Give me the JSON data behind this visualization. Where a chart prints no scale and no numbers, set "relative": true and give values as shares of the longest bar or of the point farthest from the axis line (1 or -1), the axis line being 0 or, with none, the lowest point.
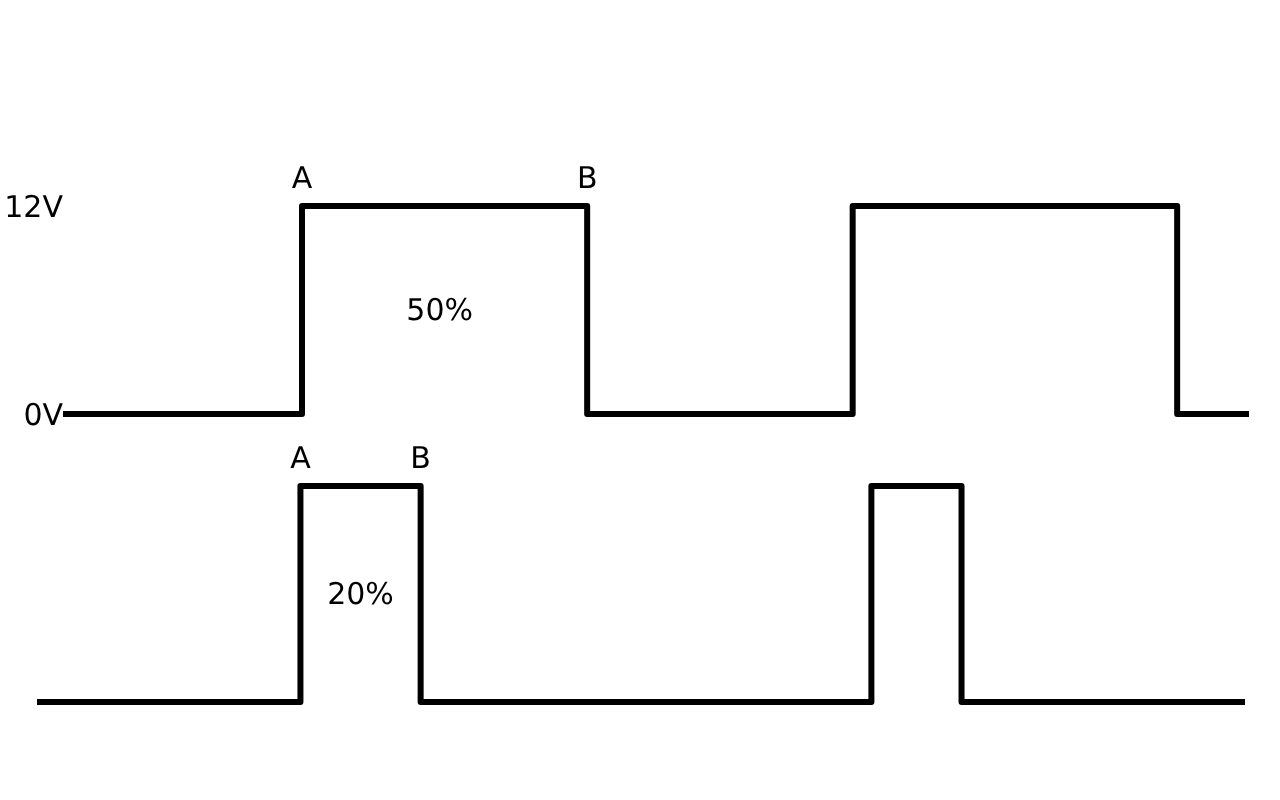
{
  "chart_data": [
    {
      "type": "step",
      "categories": [
        null,
        null,
        null,
        null,
        null,
        null,
        null,
        null,
        null,
        null,
        null,
        null,
        null,
        null,
        null,
        null,
        null,
        null,
        null,
        null,
        null,
        null,
        null,
        null,
        null,
        null,
        null,
        null,
        null,
        null,
        null,
        null,
        null,
        null,
        null,
        null,
        null,
        null,
        null,
        null,
        null,
        null,
        null,
        null,
        null,
        null,
        null,
        null,
        null,
        null,
        null,
        null,
        null,
        null,
        null,
        null,
        null,
        null,
        null,
        null,
        null,
        null,
        null,
        null,
        null,
        null,
        null,
        null,
        null,
        null,
        null,
        null,
        null,
        null,
        null,
        null,
        null,
        null,
        null,
        null,
        null,
        null,
        null,
        null,
        null,
        null,
        null,
        null,
        null,
        null,
        null,
        null,
        null,
        null,
        null,
        null,
        null,
        null,
        null,
        null,
        null,
        null,
        null,
        null,
        null,
        null,
        null,
        null,
        null,
        null,
        null,
        null,
        null,
        null,
        null,
        null,
        null,
        null,
        null,
        null,
        null
      ],
      "values": [
        0,
        0,
        0,
        0,
        0,
        0,
        0,
        0,
        0,
        0,
        0,
        0,
        0,
        0,
        0,
        0,
        0,
        0,
        0,
        0,
        0,
        0,
        0,
        0,
        12,
        12,
        12,
        12,
        12,
        12,
        12,
        12,
        12,
        12,
        12,
        12,
        12,
        12,
        12,
        12,
        12,
        12,
        12,
        12,
        12,
        12,
        12,
        12,
        12,
        12,
        12,
        12,
        12,
        0,
        0,
        0,
        0,
        0,
        0,
        0,
        0,
        0,
        0,
        0,
        0,
        0,
        0,
        0,
        0,
        0,
        0,
        0,
        0,
        0,
        0,
        0,
        0,
        0,
        0,
        0,
        12,
        12,
        12,
        12,
        12,
        12,
        12,
        12,
        12,
        12,
        12,
        12,
        12,
        12,
        12,
        12,
        12,
        12,
        12,
        12,
        12,
        12,
        12,
        12,
        12,
        12,
        12,
        12,
        12,
        12,
        12,
        12,
        12,
        0,
        0,
        0,
        0,
        0,
        0,
        0,
        0
      ],
      "color": "#000000",
      "ylim": [
        0,
        12
      ],
      "yticks": [
        {
          "value": 0,
          "label": "0V"
        },
        {
          "value": 12,
          "label": "12V"
        }
      ],
      "tick_labels": "y",
      "annotations": [
        {
          "text": "A",
          "y": 12
        },
        {
          "text": "B",
          "y": 12
        },
        "50%"
      ]
    },
    {
      "type": "step",
      "categories": [
        null,
        null,
        null,
        null,
        null,
        null,
        null,
        null,
        null,
        null,
        null,
        null,
        null,
        null,
        null,
        null,
        null,
        null,
        null,
        null,
        null,
        null,
        null,
        null,
        null,
        null,
        null,
        null,
        null,
        null,
        null,
        null,
        null,
        null,
        null,
        null,
        null,
        null,
        null,
        null,
        null,
        null,
        null,
        null,
        null,
        null,
        null,
        null,
        null,
        null,
        null,
        null,
        null,
        null,
        null,
        null,
        null,
        null,
        null,
        null,
        null,
        null,
        null,
        null,
        null,
        null,
        null,
        null,
        null,
        null,
        null,
        null,
        null,
        null,
        null,
        null,
        null,
        null,
        null,
        null,
        null,
        null,
        null,
        null,
        null,
        null,
        null,
        null,
        null,
        null,
        null,
        null,
        null,
        null,
        null,
        null,
        null,
        null,
        null,
        null,
        null,
        null,
        null,
        null,
        null,
        null,
        null,
        null,
        null,
        null,
        null,
        null,
        null,
        null,
        null,
        null,
        null,
        null,
        null,
        null,
        null
      ],
      "values": [
        0,
        0,
        0,
        0,
        0,
        0,
        0,
        0,
        0,
        0,
        0,
        0,
        0,
        0,
        0,
        0,
        0,
        0,
        0,
        0,
        0,
        0,
        0,
        0,
        0,
        0,
        1,
        1,
        1,
        1,
        1,
        1,
        1,
        1,
        1,
        1,
        1,
        1,
        0,
        0,
        0,
        0,
        0,
        0,
        0,
        0,
        0,
        0,
        0,
        0,
        0,
        0,
        0,
        0,
        0,
        0,
        0,
        0,
        0,
        0,
        0,
        0,
        0,
        0,
        0,
        0,
        0,
        0,
        0,
        0,
        0,
        0,
        0,
        0,
        0,
        0,
        0,
        0,
        0,
        0,
        0,
        0,
        0,
        1,
        1,
        1,
        1,
        1,
        1,
        1,
        1,
        1,
        0,
        0,
        0,
        0,
        0,
        0,
        0,
        0,
        0,
        0,
        0,
        0,
        0,
        0,
        0,
        0,
        0,
        0,
        0,
        0,
        0,
        0,
        0,
        0,
        0,
        0,
        0,
        0,
        0
      ],
      "color": "#000000",
      "relative": true,
      "tick_labels": false,
      "annotations": [
        {
          "text": "A",
          "y": 1
        },
        {
          "text": "B",
          "y": 1
        },
        "20%"
      ]
    }
  ]
}
